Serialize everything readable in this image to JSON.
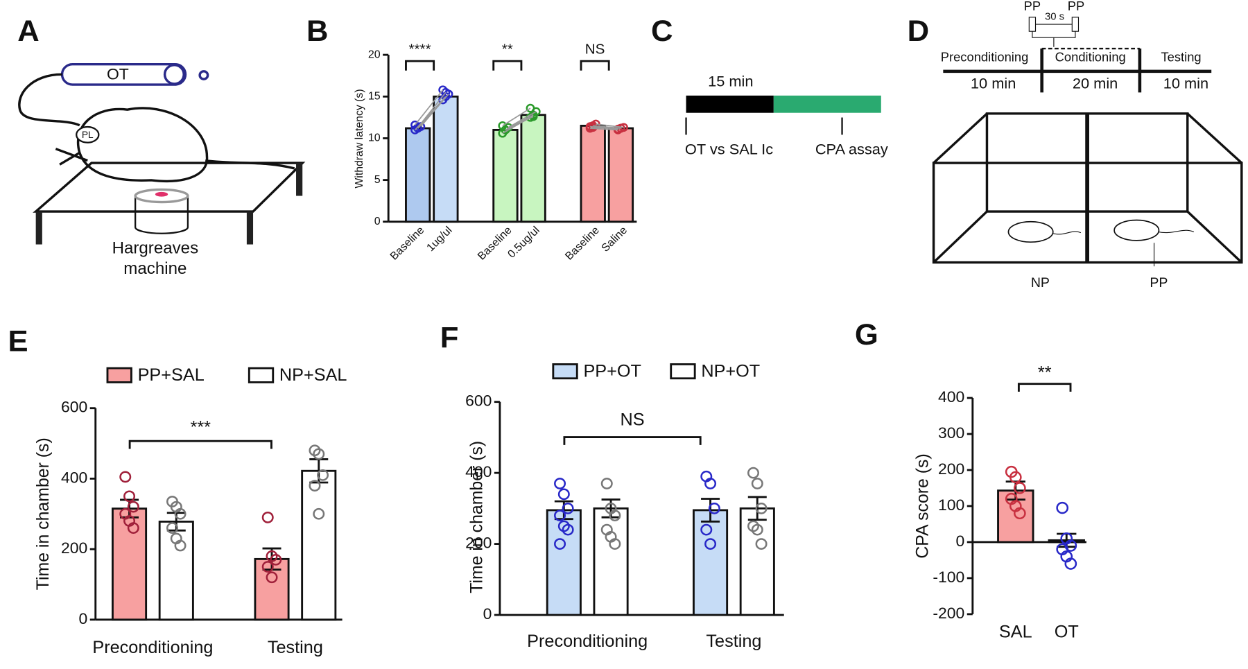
{
  "labels": [
    "A",
    "B",
    "C",
    "D",
    "E",
    "F",
    "G"
  ],
  "diagram_a": {
    "tube": "OT",
    "region": "PL",
    "device": [
      "Hargreaves",
      "machine"
    ]
  },
  "diagram_c": {
    "duration": "15 min",
    "start": "OT vs SAL Ic",
    "end": "CPA assay"
  },
  "diagram_d": {
    "stimulus": [
      "PP",
      "PP"
    ],
    "interval": "30 s",
    "phases": [
      "Preconditioning",
      "Conditioning",
      "Testing"
    ],
    "durations": [
      "10 min",
      "20 min",
      "10 min"
    ],
    "chambers": [
      "NP",
      "PP"
    ]
  },
  "chart_data": [
    {
      "type": "bar",
      "ylabel": "Withdraw latency (s)",
      "categories": [
        "Baseline",
        "1ug/ul",
        "Baseline",
        "0.5ug/ul",
        "Baseline",
        "Saline"
      ],
      "values": [
        11.2,
        15.0,
        11.0,
        12.8,
        11.5,
        11.2
      ],
      "colors": [
        "#aec9ef",
        "#c6dcf6",
        "#c8f5c0",
        "#c8f5c0",
        "#f7a0a0",
        "#f7a0a0"
      ],
      "point_colors": [
        "#2828c8",
        "#2828c8",
        "#2a9a2a",
        "#2a9a2a",
        "#c83040",
        "#c83040"
      ],
      "points": [
        [
          11.0,
          11.2,
          11.4,
          11.6,
          11.3
        ],
        [
          14.6,
          15.0,
          15.3,
          15.8,
          15.5
        ],
        [
          10.6,
          11.0,
          11.3,
          11.5,
          11.0
        ],
        [
          12.5,
          12.8,
          13.2,
          13.6,
          12.6
        ],
        [
          11.2,
          11.5,
          11.7,
          11.4,
          11.3
        ],
        [
          11.0,
          11.2,
          11.3,
          11.1,
          11.2
        ]
      ],
      "ylim": [
        0,
        20
      ],
      "yticks": [
        0,
        5,
        10,
        15,
        20
      ],
      "annotations": [
        "****",
        "**",
        "NS"
      ]
    },
    {
      "type": "grouped_bar",
      "ylabel": "Time in chamber (s)",
      "categories": [
        "Preconditioning",
        "Testing"
      ],
      "series": [
        {
          "name": "PP+SAL",
          "color": "#f7a0a0",
          "point_color": "#a0203a",
          "values": [
            315,
            172
          ],
          "errors": [
            25,
            30
          ],
          "points": [
            [
              405,
              350,
              320,
              300,
              280,
              260
            ],
            [
              290,
              180,
              170,
              150,
              120
            ]
          ]
        },
        {
          "name": "NP+SAL",
          "color": "#ffffff",
          "point_color": "#777777",
          "values": [
            278,
            422
          ],
          "errors": [
            25,
            33
          ],
          "points": [
            [
              335,
              320,
              300,
              260,
              230,
              210
            ],
            [
              480,
              470,
              410,
              380,
              300
            ]
          ]
        }
      ],
      "ylim": [
        0,
        600
      ],
      "yticks": [
        0,
        200,
        400,
        600
      ],
      "annotations": [
        "***"
      ]
    },
    {
      "type": "grouped_bar",
      "ylabel": "Time in chamber (s)",
      "categories": [
        "Preconditioning",
        "Testing"
      ],
      "series": [
        {
          "name": "PP+OT",
          "color": "#c6dcf6",
          "point_color": "#2828c8",
          "values": [
            295,
            295
          ],
          "errors": [
            25,
            32
          ],
          "points": [
            [
              370,
              340,
              300,
              280,
              250,
              240,
              200
            ],
            [
              390,
              370,
              300,
              240,
              200
            ]
          ]
        },
        {
          "name": "NP+OT",
          "color": "#ffffff",
          "point_color": "#777777",
          "values": [
            300,
            300
          ],
          "errors": [
            25,
            32
          ],
          "points": [
            [
              370,
              300,
              280,
              240,
              220,
              200
            ],
            [
              400,
              370,
              300,
              250,
              240,
              200
            ]
          ]
        }
      ],
      "ylim": [
        0,
        600
      ],
      "yticks": [
        0,
        200,
        400,
        600
      ],
      "annotations": [
        "NS"
      ]
    },
    {
      "type": "bar",
      "ylabel": "CPA score (s)",
      "categories": [
        "SAL",
        "OT"
      ],
      "values": [
        143,
        5
      ],
      "errors": [
        25,
        18
      ],
      "colors": [
        "#f7a0a0",
        "#ffffff"
      ],
      "point_colors": [
        "#c83040",
        "#2828c8"
      ],
      "points": [
        [
          195,
          180,
          150,
          120,
          100,
          80
        ],
        [
          95,
          10,
          -10,
          -20,
          -40,
          -60
        ]
      ],
      "ylim": [
        -200,
        400
      ],
      "yticks": [
        -200,
        -100,
        0,
        100,
        200,
        300,
        400
      ],
      "annotations": [
        "**"
      ]
    }
  ]
}
